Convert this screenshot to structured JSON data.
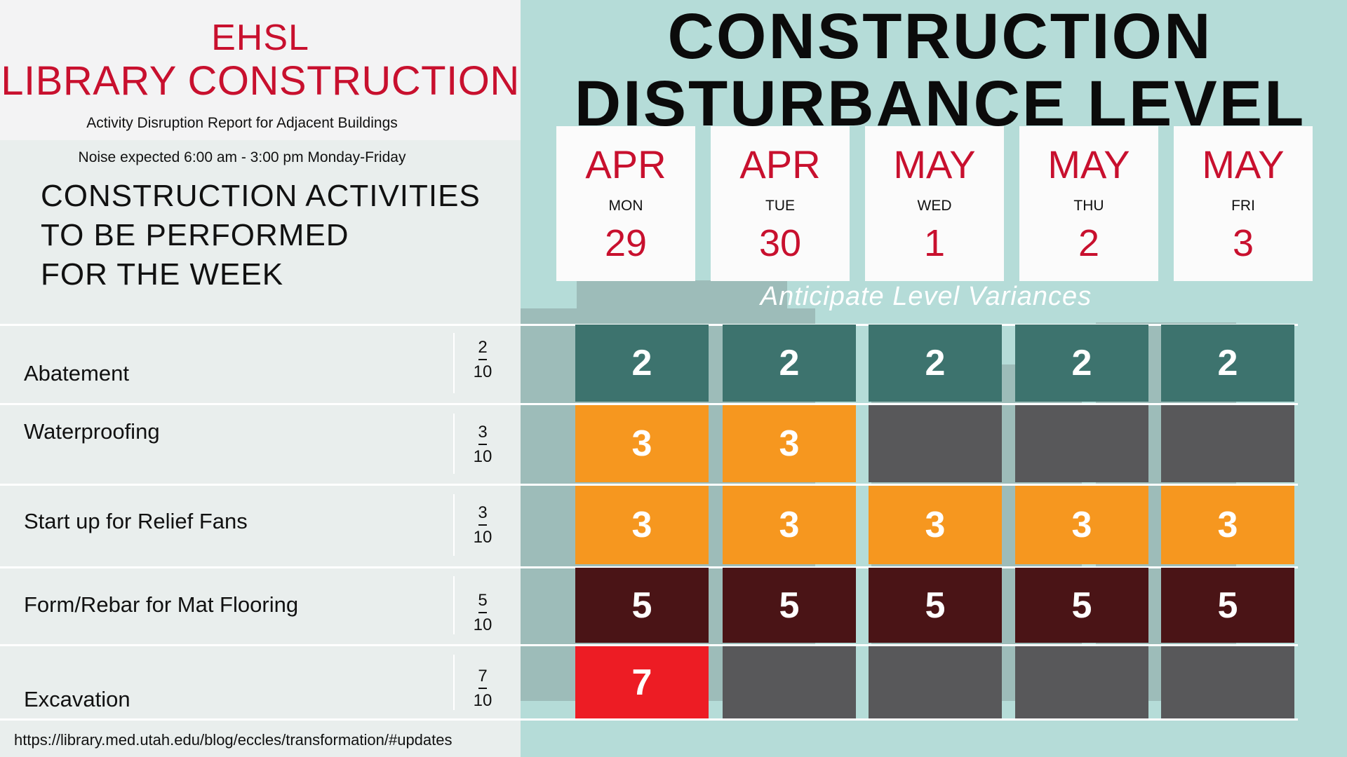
{
  "header": {
    "title_line1": "EHSL",
    "title_line2": "LIBRARY CONSTRUCTION",
    "subtitle": "Activity Disruption Report for Adjacent Buildings",
    "noise_note": "Noise expected 6:00 am - 3:00 pm Monday-Friday",
    "activities_heading_lines": [
      "CONSTRUCTION ACTIVITIES",
      "TO BE PERFORMED",
      "FOR THE WEEK"
    ]
  },
  "main_title_lines": [
    "CONSTRUCTION",
    "DISTURBANCE LEVEL"
  ],
  "dates": [
    {
      "month": "APR",
      "weekday": "MON",
      "day": "29"
    },
    {
      "month": "APR",
      "weekday": "TUE",
      "day": "30"
    },
    {
      "month": "MAY",
      "weekday": "WED",
      "day": "1"
    },
    {
      "month": "MAY",
      "weekday": "THU",
      "day": "2"
    },
    {
      "month": "MAY",
      "weekday": "FRI",
      "day": "3"
    }
  ],
  "variance_note": "Anticipate Level Variances",
  "activities": [
    {
      "name": "Abatement",
      "level": "2",
      "out_of": "10",
      "days": [
        "2",
        "2",
        "2",
        "2",
        "2"
      ]
    },
    {
      "name": "Waterproofing",
      "level": "3",
      "out_of": "10",
      "days": [
        "3",
        "3",
        "",
        "",
        ""
      ]
    },
    {
      "name": "Start up for Relief Fans",
      "level": "3",
      "out_of": "10",
      "days": [
        "3",
        "3",
        "3",
        "3",
        "3"
      ]
    },
    {
      "name": "Form/Rebar for Mat Flooring",
      "level": "5",
      "out_of": "10",
      "days": [
        "5",
        "5",
        "5",
        "5",
        "5"
      ]
    },
    {
      "name": "Excavation",
      "level": "7",
      "out_of": "10",
      "days": [
        "7",
        "",
        "",
        "",
        ""
      ]
    }
  ],
  "level_colors": {
    "2": "#3d736e",
    "3": "#f6971f",
    "5": "#4a1416",
    "7": "#ed1c24",
    "none": "#58585a"
  },
  "footer_url": "https://library.med.utah.edu/blog/eccles/transformation/#updates"
}
